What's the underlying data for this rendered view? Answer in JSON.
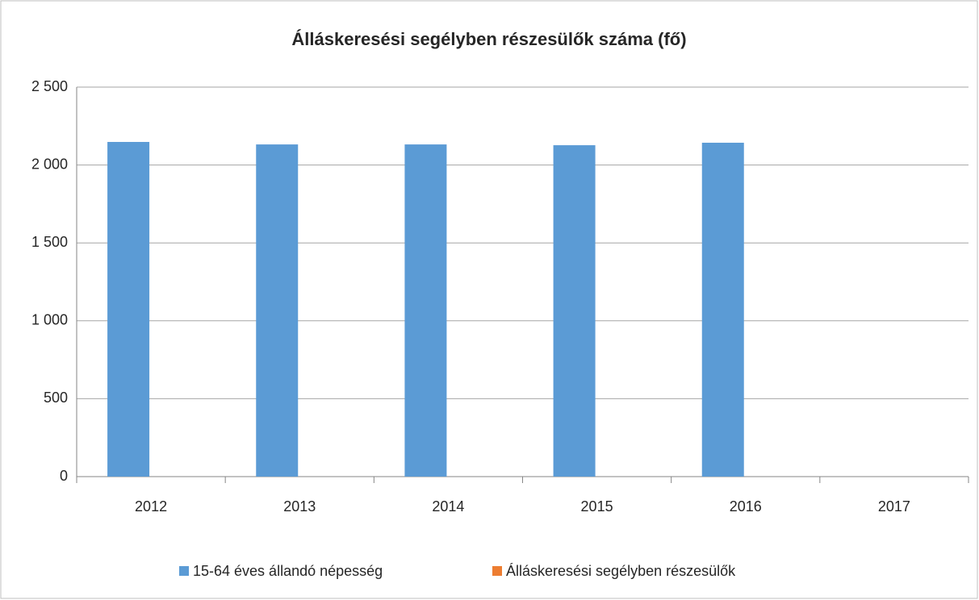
{
  "chart_data": {
    "type": "bar",
    "title": "Álláskeresési segélyben részesülők száma (fő)",
    "categories": [
      "2012",
      "2013",
      "2014",
      "2015",
      "2016",
      "2017"
    ],
    "series": [
      {
        "name": "15-64 éves állandó népesség",
        "color": "#5b9bd5",
        "values": [
          2148,
          2132,
          2132,
          2127,
          2143,
          null
        ]
      },
      {
        "name": "Álláskeresési segélyben részesülők",
        "color": "#ed7d31",
        "values": [
          null,
          null,
          null,
          null,
          null,
          null
        ]
      }
    ],
    "ylim": [
      0,
      2500
    ],
    "yticks": [
      0,
      500,
      {
        "value": 1000,
        "label": "1 000"
      },
      {
        "value": 1500,
        "label": "1 500"
      },
      {
        "value": 2000,
        "label": "2 000"
      },
      {
        "value": 2500,
        "label": "2 500"
      }
    ],
    "grid": true,
    "legend": "bottom"
  }
}
